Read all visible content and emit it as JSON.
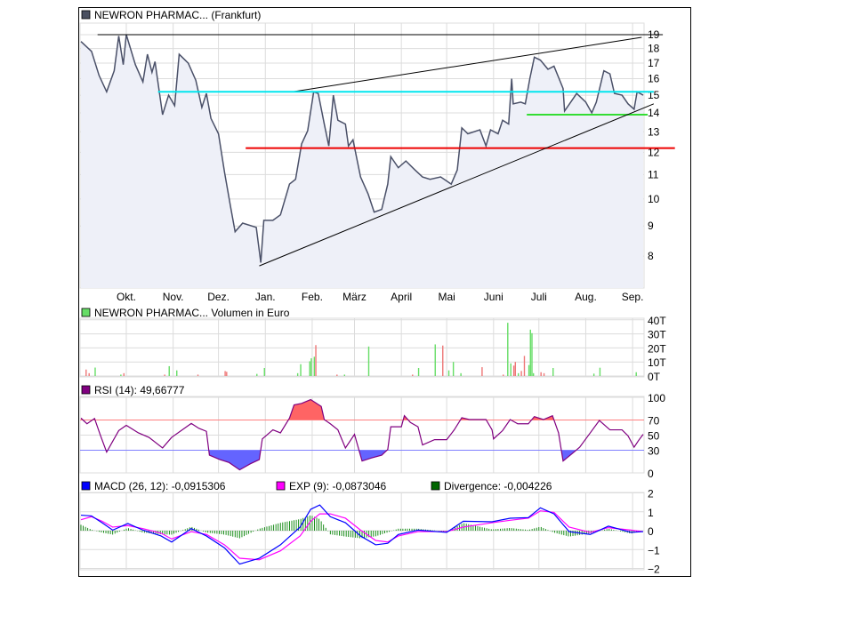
{
  "chart_data": [
    {
      "type": "line",
      "title": "NEWRON PHARMAC... (Frankfurt)",
      "y_scale": "log",
      "ylim": [
        7.2,
        19.5
      ],
      "y_ticks": [
        8,
        9,
        10,
        11,
        12,
        13,
        14,
        15,
        16,
        17,
        18,
        19
      ],
      "x_ticks": [
        "Okt.",
        "Nov.",
        "Dez.",
        "Jan.",
        "Feb.",
        "März",
        "April",
        "Mai",
        "Juni",
        "Juli",
        "Aug.",
        "Sep."
      ],
      "x_tick_dates": [
        "10-01",
        "11-01",
        "12-01",
        "01-01",
        "02-01",
        "03-01",
        "04-01",
        "05-01",
        "06-01",
        "07-01",
        "08-01",
        "09-01"
      ],
      "grid": true,
      "colors": {
        "line": "#4a5068",
        "fill": "#eef0f8",
        "legend": "#4a5060"
      },
      "series": [
        {
          "values": [
            [
              "09-01",
              18.5
            ],
            [
              "09-08",
              17.8
            ],
            [
              "09-13",
              16.2
            ],
            [
              "09-18",
              15.2
            ],
            [
              "09-23",
              16.5
            ],
            [
              "09-26",
              18.9
            ],
            [
              "09-29",
              16.9
            ],
            [
              "10-01",
              19
            ],
            [
              "10-07",
              16.9
            ],
            [
              "10-12",
              15.8
            ],
            [
              "10-15",
              17.6
            ],
            [
              "10-18",
              16.4
            ],
            [
              "10-20",
              17.1
            ],
            [
              "10-25",
              13.9
            ],
            [
              "10-29",
              15
            ],
            [
              "11-02",
              14.4
            ],
            [
              "11-05",
              17.6
            ],
            [
              "11-11",
              17
            ],
            [
              "11-16",
              15.9
            ],
            [
              "11-20",
              14.3
            ],
            [
              "11-23",
              15.1
            ],
            [
              "11-26",
              13.7
            ],
            [
              "12-01",
              12.9
            ],
            [
              "12-05",
              11.1
            ],
            [
              "12-09",
              9.7
            ],
            [
              "12-12",
              8.8
            ],
            [
              "12-17",
              9.1
            ],
            [
              "12-26",
              8.95
            ],
            [
              "12-29",
              7.8
            ],
            [
              "12-31",
              9.2
            ],
            [
              "01-06",
              9.2
            ],
            [
              "01-11",
              9.4
            ],
            [
              "01-17",
              10.6
            ],
            [
              "01-21",
              10.8
            ],
            [
              "01-25",
              12.4
            ],
            [
              "01-29",
              13.05
            ],
            [
              "02-02",
              15.2
            ],
            [
              "02-05",
              15.1
            ],
            [
              "02-09",
              13.4
            ],
            [
              "02-12",
              12.3
            ],
            [
              "02-15",
              15
            ],
            [
              "02-18",
              13.6
            ],
            [
              "02-23",
              13.4
            ],
            [
              "02-25",
              12.3
            ],
            [
              "02-28",
              12.6
            ],
            [
              "03-05",
              10.9
            ],
            [
              "03-10",
              10.2
            ],
            [
              "03-14",
              9.5
            ],
            [
              "03-19",
              9.6
            ],
            [
              "03-23",
              10.6
            ],
            [
              "03-25",
              11.8
            ],
            [
              "03-30",
              11.3
            ],
            [
              "04-04",
              11.6
            ],
            [
              "04-10",
              11.2
            ],
            [
              "04-15",
              10.9
            ],
            [
              "04-20",
              10.8
            ],
            [
              "04-27",
              10.9
            ],
            [
              "05-04",
              10.6
            ],
            [
              "05-08",
              11.2
            ],
            [
              "05-11",
              13.2
            ],
            [
              "05-15",
              12.9
            ],
            [
              "05-23",
              13.1
            ],
            [
              "05-27",
              12.3
            ],
            [
              "05-30",
              13.1
            ],
            [
              "06-04",
              12.9
            ],
            [
              "06-07",
              13.6
            ],
            [
              "06-11",
              13.4
            ],
            [
              "06-13",
              16
            ],
            [
              "06-14",
              14.5
            ],
            [
              "06-19",
              14.6
            ],
            [
              "06-22",
              14.5
            ],
            [
              "06-25",
              16
            ],
            [
              "06-28",
              17.4
            ],
            [
              "07-02",
              17.2
            ],
            [
              "07-07",
              16.6
            ],
            [
              "07-11",
              16.8
            ],
            [
              "07-17",
              15.4
            ],
            [
              "07-18",
              14.1
            ],
            [
              "07-26",
              15.1
            ],
            [
              "08-01",
              14.6
            ],
            [
              "08-05",
              14
            ],
            [
              "08-08",
              14.6
            ],
            [
              "08-13",
              16.5
            ],
            [
              "08-17",
              16.3
            ],
            [
              "08-20",
              15.1
            ],
            [
              "08-25",
              15
            ],
            [
              "08-29",
              14.5
            ],
            [
              "09-02",
              14.2
            ],
            [
              "09-04",
              15.2
            ],
            [
              "09-08",
              15
            ]
          ]
        }
      ],
      "annotations": [
        {
          "kind": "trendline",
          "color": "#000000",
          "from": [
            "09-12",
            19
          ],
          "to": [
            "09-21",
            19
          ]
        },
        {
          "kind": "trendline",
          "color": "#000000",
          "from": [
            "01-19",
            15.2
          ],
          "to": [
            "09-07",
            18.8
          ]
        },
        {
          "kind": "trendline",
          "color": "#00e5ee",
          "from": [
            "10-22",
            15.2
          ],
          "to": [
            "09-15",
            15.2
          ]
        },
        {
          "kind": "trendline",
          "color": "#ee0000",
          "from": [
            "12-19",
            12.2
          ],
          "to": [
            "09-29",
            12.2
          ]
        },
        {
          "kind": "trendline",
          "color": "#33dd33",
          "from": [
            "06-23",
            13.9
          ],
          "to": [
            "09-11",
            13.9
          ]
        },
        {
          "kind": "trendline",
          "color": "#000000",
          "from": [
            "12-28",
            7.7
          ],
          "to": [
            "09-15",
            14.5
          ]
        }
      ]
    },
    {
      "type": "bar",
      "title": "NEWRON PHARMAC... Volumen in Euro",
      "ylim": [
        0,
        40
      ],
      "y_ticks": [
        "0T",
        "10T",
        "20T",
        "30T",
        "40T"
      ],
      "unit": "T",
      "colors": {
        "up": "#66dd66",
        "down": "#ee7777",
        "legend": "#66dd66"
      },
      "bars": [
        [
          "09-04",
          4.6,
          "down"
        ],
        [
          "09-06",
          2,
          "down"
        ],
        [
          "09-10",
          6,
          "up"
        ],
        [
          "09-27",
          1,
          "up"
        ],
        [
          "09-29",
          2,
          "down"
        ],
        [
          "10-26",
          1,
          "down"
        ],
        [
          "10-29",
          7,
          "up"
        ],
        [
          "11-03",
          4,
          "up"
        ],
        [
          "11-17",
          1,
          "down"
        ],
        [
          "12-05",
          3.5,
          "down"
        ],
        [
          "12-06",
          3,
          "down"
        ],
        [
          "12-26",
          1.5,
          "up"
        ],
        [
          "12-31",
          5.7,
          "up"
        ],
        [
          "01-22",
          2,
          "up"
        ],
        [
          "01-24",
          8.4,
          "up"
        ],
        [
          "01-30",
          10.5,
          "up"
        ],
        [
          "01-31",
          12.6,
          "up"
        ],
        [
          "02-02",
          13.7,
          "up"
        ],
        [
          "02-03",
          22,
          "down"
        ],
        [
          "02-17",
          1,
          "down"
        ],
        [
          "02-22",
          1,
          "up"
        ],
        [
          "03-10",
          21,
          "up"
        ],
        [
          "04-08",
          1,
          "down"
        ],
        [
          "04-12",
          5.7,
          "up"
        ],
        [
          "04-23",
          22.5,
          "up"
        ],
        [
          "04-28",
          21.7,
          "down"
        ],
        [
          "05-02",
          4,
          "up"
        ],
        [
          "05-05",
          10,
          "up"
        ],
        [
          "05-10",
          2,
          "up"
        ],
        [
          "05-24",
          6.3,
          "down"
        ],
        [
          "06-07",
          1,
          "down"
        ],
        [
          "06-10",
          37.9,
          "up"
        ],
        [
          "06-12",
          9,
          "up"
        ],
        [
          "06-14",
          7.4,
          "down"
        ],
        [
          "06-15",
          10,
          "down"
        ],
        [
          "06-17",
          2,
          "up"
        ],
        [
          "06-19",
          3.6,
          "down"
        ],
        [
          "06-21",
          14.3,
          "down"
        ],
        [
          "06-24",
          7.8,
          "up"
        ],
        [
          "06-25",
          33,
          "up"
        ],
        [
          "06-26",
          30.5,
          "up"
        ],
        [
          "06-27",
          2,
          "up"
        ],
        [
          "07-02",
          2.7,
          "down"
        ],
        [
          "07-04",
          2,
          "down"
        ],
        [
          "07-10",
          5.7,
          "up"
        ],
        [
          "08-06",
          1.7,
          "up"
        ],
        [
          "08-10",
          5.9,
          "up"
        ],
        [
          "09-03",
          2.7,
          "up"
        ]
      ]
    },
    {
      "type": "line",
      "title": "RSI (14): 49,66777",
      "ylim": [
        0,
        100
      ],
      "y_ticks": [
        0,
        30,
        50,
        70,
        100
      ],
      "levels": {
        "upper": 70,
        "lower": 30
      },
      "colors": {
        "line": "#800080",
        "upper": "#ff8080",
        "lower": "#8080ff",
        "upper_fill": "#ff6464",
        "lower_fill": "#6464ff",
        "legend": "#800080"
      },
      "values": [
        [
          "09-01",
          72.5
        ],
        [
          "09-05",
          65
        ],
        [
          "09-10",
          72
        ],
        [
          "09-14",
          49
        ],
        [
          "09-18",
          27.5
        ],
        [
          "09-26",
          56
        ],
        [
          "10-01",
          63
        ],
        [
          "10-09",
          53
        ],
        [
          "10-16",
          47
        ],
        [
          "10-25",
          33
        ],
        [
          "10-31",
          47
        ],
        [
          "11-13",
          65.5
        ],
        [
          "11-18",
          59
        ],
        [
          "11-23",
          55
        ],
        [
          "11-25",
          23.5
        ],
        [
          "12-02",
          17.6
        ],
        [
          "12-08",
          13.7
        ],
        [
          "12-15",
          4
        ],
        [
          "12-22",
          12
        ],
        [
          "12-28",
          17.6
        ],
        [
          "12-30",
          45
        ],
        [
          "01-06",
          57
        ],
        [
          "01-11",
          53
        ],
        [
          "01-17",
          72.5
        ],
        [
          "01-20",
          90
        ],
        [
          "01-25",
          92
        ],
        [
          "01-31",
          97
        ],
        [
          "02-07",
          88
        ],
        [
          "02-09",
          70.6
        ],
        [
          "02-13",
          65
        ],
        [
          "02-18",
          57
        ],
        [
          "02-23",
          33
        ],
        [
          "03-01",
          51
        ],
        [
          "03-06",
          15.7
        ],
        [
          "03-12",
          19.6
        ],
        [
          "03-19",
          23.5
        ],
        [
          "03-23",
          31
        ],
        [
          "03-25",
          61
        ],
        [
          "04-01",
          61
        ],
        [
          "04-03",
          75.7
        ],
        [
          "04-07",
          66.7
        ],
        [
          "04-12",
          61
        ],
        [
          "04-15",
          37
        ],
        [
          "04-23",
          44
        ],
        [
          "05-01",
          44
        ],
        [
          "05-06",
          57
        ],
        [
          "05-11",
          73
        ],
        [
          "05-16",
          70.6
        ],
        [
          "05-24",
          70.6
        ],
        [
          "05-27",
          70.6
        ],
        [
          "05-31",
          57
        ],
        [
          "06-01",
          45
        ],
        [
          "06-07",
          56
        ],
        [
          "06-12",
          70.6
        ],
        [
          "06-17",
          65
        ],
        [
          "06-24",
          65
        ],
        [
          "06-28",
          74.5
        ],
        [
          "07-04",
          70.6
        ],
        [
          "07-10",
          75.7
        ],
        [
          "07-14",
          53
        ],
        [
          "07-17",
          15.7
        ],
        [
          "07-23",
          25.5
        ],
        [
          "07-28",
          34
        ],
        [
          "08-04",
          53
        ],
        [
          "08-10",
          69.4
        ],
        [
          "08-17",
          57
        ],
        [
          "08-25",
          57
        ],
        [
          "08-29",
          49
        ],
        [
          "09-02",
          34
        ],
        [
          "09-05",
          43
        ],
        [
          "09-08",
          51
        ]
      ]
    },
    {
      "type": "line",
      "ylim": [
        -2,
        2
      ],
      "y_ticks": [
        -2,
        -1,
        0,
        1,
        2
      ],
      "legend": [
        {
          "label": "MACD (26, 12): -0,0915306",
          "color": "#0000ff"
        },
        {
          "label": "EXP (9): -0,0873046",
          "color": "#ff00ff"
        },
        {
          "label": "Divergence: -0,004226",
          "color": "#006600"
        }
      ],
      "divergence_color": "#008000",
      "x": [
        "09-01",
        "09-08",
        "09-15",
        "09-22",
        "10-02",
        "10-12",
        "10-24",
        "10-31",
        "11-13",
        "11-23",
        "12-05",
        "12-15",
        "12-28",
        "01-11",
        "01-24",
        "01-31",
        "02-06",
        "02-13",
        "02-23",
        "03-05",
        "03-15",
        "03-23",
        "03-30",
        "04-12",
        "05-01",
        "05-12",
        "05-31",
        "06-12",
        "06-24",
        "07-02",
        "07-11",
        "07-21",
        "08-04",
        "08-16",
        "08-31",
        "09-08"
      ],
      "series": [
        {
          "name": "MACD (26, 12)",
          "values": [
            0.82,
            0.78,
            0.42,
            0.03,
            0.38,
            0.03,
            -0.28,
            -0.6,
            0.11,
            -0.28,
            -0.91,
            -1.77,
            -1.46,
            -0.75,
            0.19,
            1.13,
            1.36,
            0.74,
            0.42,
            -0.28,
            -0.75,
            -0.67,
            -0.2,
            0.03,
            -0.09,
            0.5,
            0.47,
            0.66,
            0.69,
            1.21,
            0.89,
            -0.05,
            -0.2,
            0.24,
            -0.09,
            -0.05
          ]
        },
        {
          "name": "EXP (9)",
          "values": [
            0.58,
            0.74,
            0.5,
            0.19,
            0.27,
            0.11,
            -0.13,
            -0.44,
            -0.05,
            -0.2,
            -0.75,
            -1.46,
            -1.54,
            -1.07,
            -0.28,
            0.5,
            0.89,
            0.89,
            0.66,
            0.03,
            -0.52,
            -0.6,
            -0.28,
            -0.05,
            -0.05,
            0.19,
            0.42,
            0.55,
            0.66,
            1.05,
            0.97,
            0.19,
            -0.09,
            0.16,
            0.03,
            -0.05
          ]
        }
      ]
    }
  ]
}
